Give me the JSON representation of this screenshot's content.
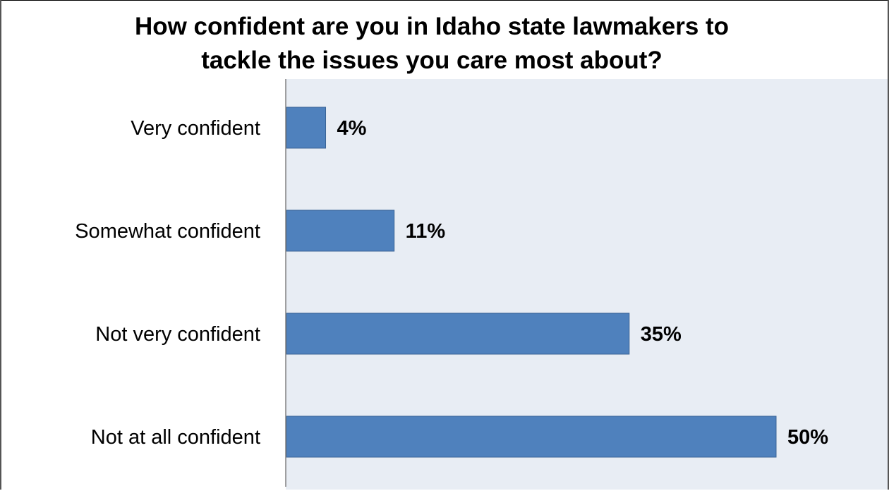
{
  "chart_data": {
    "type": "bar",
    "orientation": "horizontal",
    "title": "How confident are you in  Idaho state lawmakers to tackle the issues you care most about?",
    "title_lines": [
      "How confident are you in  Idaho state lawmakers to",
      "tackle the issues you care most about?"
    ],
    "categories": [
      "Very confident",
      "Somewhat confident",
      "Not very confident",
      "Not at all confident"
    ],
    "values": [
      4,
      11,
      35,
      50
    ],
    "data_labels": [
      "4%",
      "11%",
      "35%",
      "50%"
    ],
    "xlim": [
      0,
      58
    ],
    "grid": false,
    "legend": "none",
    "colors": {
      "bar_fill": "#4f81bd",
      "bar_stroke": "#3a6496",
      "plot_background": "#e8edf4",
      "axis": "#808080"
    }
  }
}
